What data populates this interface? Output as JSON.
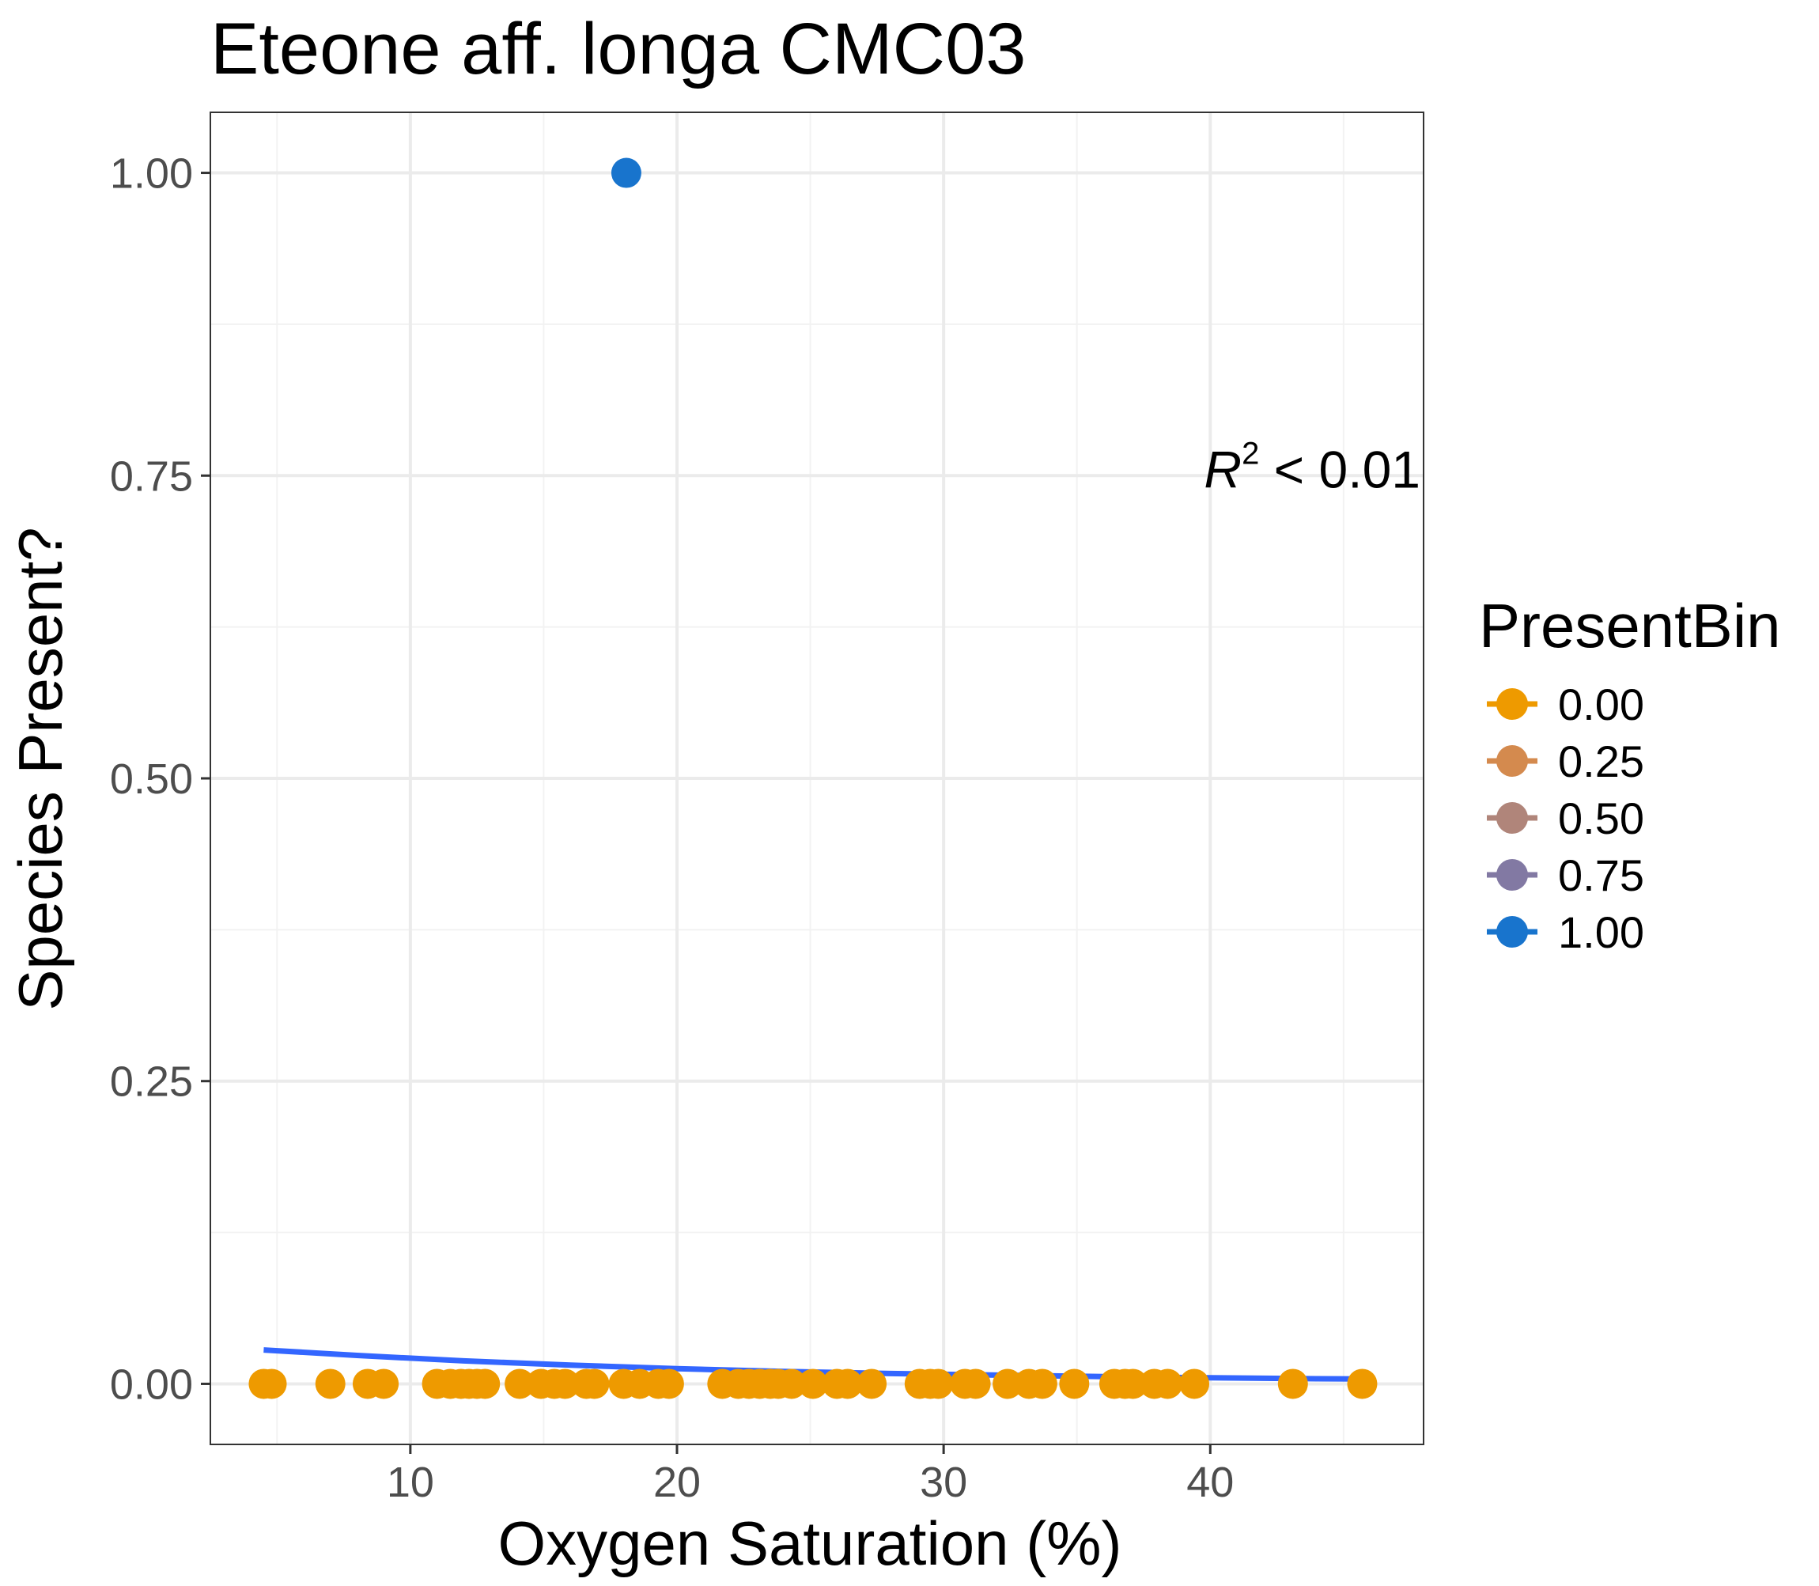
{
  "chart_data": {
    "type": "scatter",
    "title": "Eteone aff. longa CMC03",
    "xlabel": "Oxygen Saturation (%)",
    "ylabel": "Species Present?",
    "xlim": [
      2.5,
      48.0
    ],
    "ylim": [
      -0.05,
      1.05
    ],
    "x_ticks": [
      10,
      20,
      30,
      40
    ],
    "x_tick_labels": [
      "10",
      "20",
      "30",
      "40"
    ],
    "y_ticks": [
      0,
      0.25,
      0.5,
      0.75,
      1.0
    ],
    "y_tick_labels": [
      "0.00",
      "0.25",
      "0.50",
      "0.75",
      "1.00"
    ],
    "grid": true,
    "theme": "bw",
    "legend": {
      "title": "PresentBin",
      "placement": "right",
      "entries": [
        {
          "label": "0.00",
          "color": "#EE9A00"
        },
        {
          "label": "0.25",
          "color": "#D48A4E"
        },
        {
          "label": "0.50",
          "color": "#B0857A"
        },
        {
          "label": "0.75",
          "color": "#8279A3"
        },
        {
          "label": "1.00",
          "color": "#1874CD"
        }
      ]
    },
    "annotation": {
      "r_label": "R",
      "r_sup": "2",
      "rest": " < 0.01",
      "x": 48.0,
      "y": 0.74
    },
    "points": [
      {
        "x": 18.1,
        "y": 1,
        "bin": 1.0
      },
      {
        "x": 4.5,
        "y": 0,
        "bin": 0.0
      },
      {
        "x": 4.8,
        "y": 0,
        "bin": 0.0
      },
      {
        "x": 7.0,
        "y": 0,
        "bin": 0.0
      },
      {
        "x": 8.4,
        "y": 0,
        "bin": 0.0
      },
      {
        "x": 9.0,
        "y": 0,
        "bin": 0.0
      },
      {
        "x": 11.0,
        "y": 0,
        "bin": 0.0
      },
      {
        "x": 11.5,
        "y": 0,
        "bin": 0.0
      },
      {
        "x": 11.9,
        "y": 0,
        "bin": 0.0
      },
      {
        "x": 12.2,
        "y": 0,
        "bin": 0.0
      },
      {
        "x": 12.5,
        "y": 0,
        "bin": 0.0
      },
      {
        "x": 12.8,
        "y": 0,
        "bin": 0.0
      },
      {
        "x": 14.1,
        "y": 0,
        "bin": 0.0
      },
      {
        "x": 14.9,
        "y": 0,
        "bin": 0.0
      },
      {
        "x": 15.4,
        "y": 0,
        "bin": 0.0
      },
      {
        "x": 15.8,
        "y": 0,
        "bin": 0.0
      },
      {
        "x": 16.6,
        "y": 0,
        "bin": 0.0
      },
      {
        "x": 16.9,
        "y": 0,
        "bin": 0.0
      },
      {
        "x": 18.0,
        "y": 0,
        "bin": 0.0
      },
      {
        "x": 18.6,
        "y": 0,
        "bin": 0.0
      },
      {
        "x": 19.3,
        "y": 0,
        "bin": 0.0
      },
      {
        "x": 19.7,
        "y": 0,
        "bin": 0.0
      },
      {
        "x": 21.7,
        "y": 0,
        "bin": 0.0
      },
      {
        "x": 22.3,
        "y": 0,
        "bin": 0.0
      },
      {
        "x": 22.7,
        "y": 0,
        "bin": 0.0
      },
      {
        "x": 23.1,
        "y": 0,
        "bin": 0.0
      },
      {
        "x": 23.5,
        "y": 0,
        "bin": 0.0
      },
      {
        "x": 23.8,
        "y": 0,
        "bin": 0.0
      },
      {
        "x": 24.3,
        "y": 0,
        "bin": 0.0
      },
      {
        "x": 25.1,
        "y": 0,
        "bin": 0.0
      },
      {
        "x": 26.0,
        "y": 0,
        "bin": 0.0
      },
      {
        "x": 26.4,
        "y": 0,
        "bin": 0.0
      },
      {
        "x": 27.3,
        "y": 0,
        "bin": 0.0
      },
      {
        "x": 29.1,
        "y": 0,
        "bin": 0.0
      },
      {
        "x": 29.5,
        "y": 0,
        "bin": 0.0
      },
      {
        "x": 29.8,
        "y": 0,
        "bin": 0.0
      },
      {
        "x": 30.8,
        "y": 0,
        "bin": 0.0
      },
      {
        "x": 31.2,
        "y": 0,
        "bin": 0.0
      },
      {
        "x": 32.4,
        "y": 0,
        "bin": 0.0
      },
      {
        "x": 33.2,
        "y": 0,
        "bin": 0.0
      },
      {
        "x": 33.7,
        "y": 0,
        "bin": 0.0
      },
      {
        "x": 34.9,
        "y": 0,
        "bin": 0.0
      },
      {
        "x": 36.4,
        "y": 0,
        "bin": 0.0
      },
      {
        "x": 36.8,
        "y": 0,
        "bin": 0.0
      },
      {
        "x": 37.1,
        "y": 0,
        "bin": 0.0
      },
      {
        "x": 37.9,
        "y": 0,
        "bin": 0.0
      },
      {
        "x": 38.4,
        "y": 0,
        "bin": 0.0
      },
      {
        "x": 39.4,
        "y": 0,
        "bin": 0.0
      },
      {
        "x": 43.1,
        "y": 0,
        "bin": 0.0
      },
      {
        "x": 45.7,
        "y": 0,
        "bin": 0.0
      }
    ],
    "fit_line": {
      "color": "#3366FF",
      "x": [
        4.5,
        8,
        12,
        16,
        20,
        24,
        28,
        32,
        36,
        40,
        44,
        45.7
      ],
      "y": [
        0.028,
        0.0235,
        0.019,
        0.0155,
        0.0125,
        0.0102,
        0.0085,
        0.0072,
        0.006,
        0.005,
        0.0042,
        0.004
      ]
    }
  }
}
